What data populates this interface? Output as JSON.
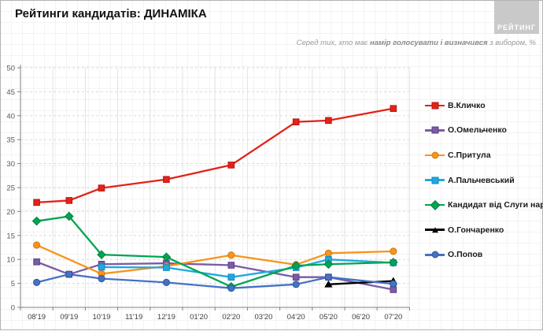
{
  "header": {
    "title": "Рейтинги кандидатів: ДИНАМІКА",
    "logo": "РЕЙТИНГ",
    "subtitle": {
      "prefix": "Серед тих, хто має ",
      "bold": "намір голосувати і визначився",
      "suffix": " з вибором, %"
    }
  },
  "chart_data": {
    "type": "line",
    "title": "Рейтинги кандидатів: ДИНАМІКА",
    "categories": [
      "08'19",
      "09'19",
      "10'19",
      "11'19",
      "12'19",
      "01'20",
      "02'20",
      "03'20",
      "04'20",
      "05'20",
      "06'20",
      "07'20"
    ],
    "ylim": [
      0,
      50
    ],
    "ytick_step": 5,
    "grid": true,
    "legend_position": "right",
    "series": [
      {
        "name": "В.Кличко",
        "color": "#e2231a",
        "border": "#b8160f",
        "marker": "square",
        "values": [
          21.9,
          22.3,
          24.9,
          null,
          26.7,
          null,
          29.7,
          null,
          38.7,
          39.0,
          null,
          41.5
        ]
      },
      {
        "name": "О.Омельченко",
        "color": "#7a5ba6",
        "border": "#5e4388",
        "marker": "square",
        "values": [
          9.5,
          6.9,
          9.0,
          null,
          9.2,
          null,
          8.8,
          null,
          6.3,
          6.3,
          null,
          3.7
        ]
      },
      {
        "name": "С.Притула",
        "color": "#f7941d",
        "border": "#d4780a",
        "marker": "circle",
        "values": [
          13.0,
          null,
          7.0,
          null,
          8.6,
          null,
          10.9,
          null,
          8.9,
          11.3,
          null,
          11.7
        ]
      },
      {
        "name": "А.Пальчевський",
        "color": "#21a8e0",
        "border": "#128abd",
        "marker": "square",
        "values": [
          null,
          null,
          8.4,
          null,
          8.3,
          null,
          6.3,
          null,
          8.3,
          10.0,
          null,
          9.3
        ]
      },
      {
        "name": "Кандидат від Слуги народу",
        "color": "#00a551",
        "border": "#00813e",
        "marker": "diamond",
        "values": [
          18.0,
          19.0,
          11.0,
          null,
          10.5,
          null,
          4.3,
          null,
          8.7,
          9.0,
          null,
          9.4
        ]
      },
      {
        "name": "О.Гончаренко",
        "color": "#000000",
        "border": "#000000",
        "marker": "triangle",
        "values": [
          null,
          null,
          null,
          null,
          null,
          null,
          null,
          null,
          null,
          4.8,
          null,
          5.5
        ]
      },
      {
        "name": "О.Попов",
        "color": "#4472c4",
        "border": "#2f569e",
        "marker": "circle",
        "values": [
          5.2,
          6.9,
          6.0,
          null,
          5.2,
          null,
          4.0,
          null,
          4.8,
          6.3,
          null,
          4.9
        ]
      }
    ]
  }
}
